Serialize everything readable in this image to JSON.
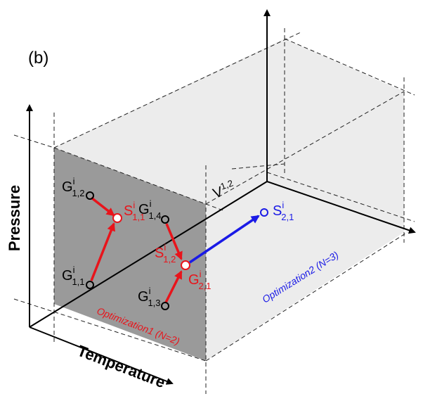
{
  "panel_label": "(b)",
  "axes": {
    "y": "Pressure",
    "x": "Temperature"
  },
  "boundary_label": {
    "base": "V",
    "sup": "1,2"
  },
  "nodes": [
    {
      "base": "G",
      "sup": "i",
      "sub": "1,2"
    },
    {
      "base": "S",
      "sup": "i",
      "sub": "1,1"
    },
    {
      "base": "G",
      "sup": "i",
      "sub": "1,1"
    },
    {
      "base": "G",
      "sup": "i",
      "sub": "1,4"
    },
    {
      "base": "S",
      "sup": "i",
      "sub": "1,2"
    },
    {
      "base": "G",
      "sup": "i",
      "sub": "2,1"
    },
    {
      "base": "G",
      "sup": "i",
      "sub": "1,3"
    },
    {
      "base": "S",
      "sup": "i",
      "sub": "2,1"
    }
  ],
  "annotations": [
    "Optimization1 (N=2)",
    "Optimization2 (N=3)"
  ]
}
